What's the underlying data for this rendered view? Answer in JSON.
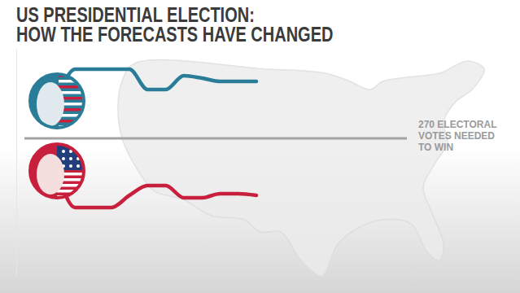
{
  "chart_data": {
    "type": "line",
    "title": [
      "US PRESIDENTIAL ELECTION:",
      "HOW THE FORECASTS HAVE CHANGED"
    ],
    "categories": [
      null,
      null,
      null,
      null,
      null,
      null,
      null,
      null,
      null,
      null,
      null,
      null
    ],
    "series": [
      {
        "color": "#2a7d98",
        "values": [
          316,
          355,
          355,
          355,
          355,
          330,
          330,
          347,
          344,
          340,
          340,
          340
        ]
      },
      {
        "color": "#c8203c",
        "values": [
          230,
          185,
          185,
          185,
          200,
          212,
          212,
          197,
          197,
          202,
          202,
          200
        ]
      }
    ],
    "ylim": [
      100,
      380
    ],
    "yticks": [],
    "grid": false,
    "tick_labels": false,
    "annotations": [
      {
        "value": 270,
        "text": [
          "270 ELECTORAL",
          "VOTES NEEDED",
          "TO WIN"
        ]
      }
    ]
  }
}
